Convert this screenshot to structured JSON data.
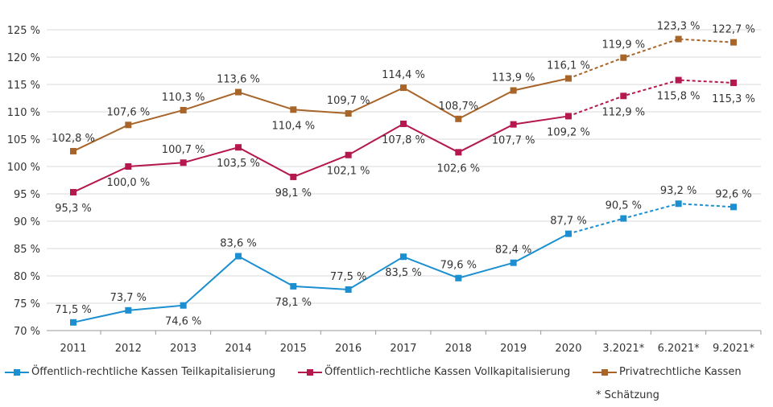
{
  "chart_data": {
    "type": "line",
    "categories": [
      "2011",
      "2012",
      "2013",
      "2014",
      "2015",
      "2016",
      "2017",
      "2018",
      "2019",
      "2020",
      "3.2021*",
      "6.2021*",
      "9.2021*"
    ],
    "ylim": [
      70,
      125
    ],
    "yticks": [
      "70 %",
      "75 %",
      "80 %",
      "85 %",
      "90 %",
      "95 %",
      "100 %",
      "105 %",
      "110 %",
      "115 %",
      "120 %",
      "125 %"
    ],
    "grid": true,
    "legend_placement": "bottom",
    "estimate_from_index": 9,
    "series": [
      {
        "name": "Öffentlich-rechtliche Kassen Teilkapitalisierung",
        "color": "#1b8fd0",
        "values": [
          71.5,
          73.7,
          74.6,
          83.6,
          78.1,
          77.5,
          83.5,
          79.6,
          82.4,
          87.7,
          90.5,
          93.2,
          92.6
        ],
        "labels": [
          "71,5 %",
          "73,7 %",
          "74,6 %",
          "83,6 %",
          "78,1 %",
          "77,5 %",
          "83,5 %",
          "79,6 %",
          "82,4 %",
          "87,7 %",
          "90,5 %",
          "93,2 %",
          "92,6 %"
        ]
      },
      {
        "name": "Öffentlich-rechtliche Kassen Vollkapitalisierung",
        "color": "#b5174f",
        "values": [
          95.3,
          100.0,
          100.7,
          103.5,
          98.1,
          102.1,
          107.8,
          102.6,
          107.7,
          109.2,
          112.9,
          115.8,
          115.3
        ],
        "labels": [
          "95,3 %",
          "100,0 %",
          "100,7 %",
          "103,5 %",
          "98,1 %",
          "102,1 %",
          "107,8 %",
          "102,6 %",
          "107,7 %",
          "109,2 %",
          "112,9 %",
          "115,8 %",
          "115,3 %"
        ]
      },
      {
        "name": "Privatrechtliche Kassen",
        "color": "#a8652a",
        "values": [
          102.8,
          107.6,
          110.3,
          113.6,
          110.4,
          109.7,
          114.4,
          108.7,
          113.9,
          116.1,
          119.9,
          123.3,
          122.7
        ],
        "labels": [
          "102,8 %",
          "107,6 %",
          "110,3 %",
          "113,6 %",
          "110,4 %",
          "109,7 %",
          "114,4 %",
          "108,7%",
          "113,9 %",
          "116,1 %",
          "119,9 %",
          "123,3 %",
          "122,7 %"
        ]
      }
    ],
    "note": "* Schätzung"
  }
}
